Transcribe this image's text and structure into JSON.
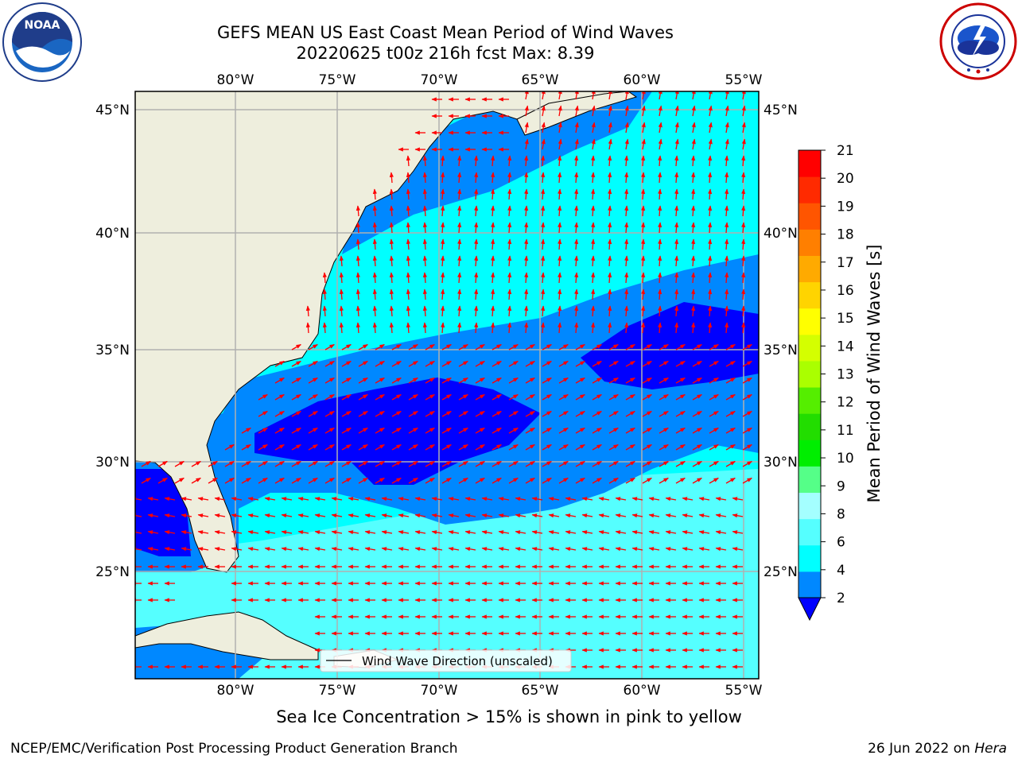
{
  "title": {
    "line1": "GEFS MEAN US East Coast Mean Period of Wind Waves",
    "line2": "20220625 t00z 216h fcst   Max: 8.39"
  },
  "map": {
    "lon_labels": [
      "80°W",
      "75°W",
      "70°W",
      "65°W",
      "60°W",
      "55°W"
    ],
    "lat_labels": [
      "45°N",
      "40°N",
      "35°N",
      "30°N",
      "25°N"
    ],
    "legend_label": "Wind Wave Direction (unscaled)",
    "colors": {
      "land": "#eeeedd",
      "arrow": "#ff0000",
      "grid": "#b0b0b0"
    }
  },
  "colorbar": {
    "label": "Mean Period of Wind Waves [s]",
    "ticks": [
      "21",
      "20",
      "19",
      "18",
      "17",
      "16",
      "15",
      "14",
      "13",
      "12",
      "11",
      "10",
      "9",
      "8",
      "6",
      "4",
      "2"
    ],
    "colors": [
      "#ff0000",
      "#ff2a00",
      "#ff5500",
      "#ff7f00",
      "#ffaa00",
      "#ffd400",
      "#ffff00",
      "#d4ff00",
      "#aaff00",
      "#55ee00",
      "#22dd00",
      "#00ee00",
      "#55ff88",
      "#a4ffff",
      "#55ffff",
      "#00ffff",
      "#0088ff"
    ],
    "under_color": "#0000ff"
  },
  "subtitle": "Sea Ice Concentration > 15% is shown in pink to yellow",
  "footer": {
    "left": "NCEP/EMC/Verification Post Processing Product Generation Branch",
    "date": "26 Jun 2022 on ",
    "machine": "Hera"
  },
  "logos": {
    "noaa_text": "NOAA"
  }
}
